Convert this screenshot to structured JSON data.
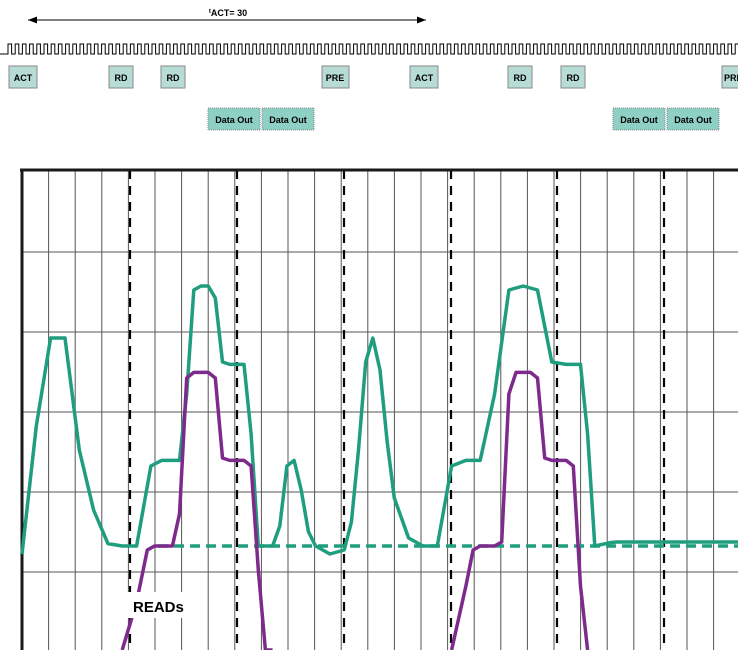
{
  "chart_data": {
    "type": "line",
    "timing": {
      "tact_label": "ACT= 30",
      "tact_prefix": "t",
      "commands": [
        "ACT",
        "RD",
        "RD",
        "PRE",
        "ACT",
        "RD",
        "RD",
        "PRE"
      ],
      "data_out": [
        "Data Out",
        "Data Out",
        "Data Out",
        "Data Out"
      ]
    },
    "annotations": [
      "READs"
    ],
    "xlabel": "",
    "ylabel": "",
    "grid": true,
    "colors": {
      "green": "#1e9e7e",
      "purple": "#7d2a8c",
      "command_fill": "#b7dcd6",
      "data_fill": "#8fd0c4",
      "axis": "#1a1a1a",
      "grid": "#555555"
    },
    "series": [
      {
        "color": "green",
        "x": [
          0,
          4,
          8,
          12,
          16,
          20,
          24,
          28,
          32,
          36,
          39,
          42,
          44,
          46,
          48,
          50,
          52,
          54,
          56,
          58,
          60,
          62,
          64,
          66,
          68,
          70,
          72,
          74,
          76,
          78,
          80,
          82,
          86,
          90,
          92,
          94,
          96,
          98,
          100,
          102,
          104,
          108,
          112,
          116,
          120,
          124,
          128,
          132,
          136,
          140,
          144,
          148,
          152,
          154,
          156,
          158,
          160,
          162,
          164,
          166,
          168,
          170,
          172,
          174,
          176,
          178,
          180,
          182,
          184,
          186,
          188,
          190,
          192,
          194,
          196,
          198,
          200
        ],
        "values": [
          0,
          1.6,
          2.7,
          2.7,
          1.3,
          0.55,
          0.13,
          0.1,
          0.1,
          1.1,
          1.17,
          1.17,
          1.17,
          2.0,
          3.3,
          3.35,
          3.35,
          3.2,
          2.4,
          2.37,
          2.37,
          2.37,
          1.5,
          0.1,
          0.1,
          0.1,
          0.35,
          1.1,
          1.17,
          0.8,
          0.28,
          0.1,
          0,
          0.05,
          0.4,
          1.3,
          2.4,
          2.7,
          2.3,
          1.4,
          0.7,
          0.2,
          0.1,
          0.1,
          1.1,
          1.17,
          1.17,
          2.0,
          3.3,
          3.35,
          3.3,
          2.4,
          2.37,
          2.37,
          2.37,
          1.5,
          0.1,
          0.12,
          0.14,
          0.15,
          0.15,
          0.15,
          0.15,
          0.15,
          0.15,
          0.15,
          0.15,
          0.15,
          0.15,
          0.15,
          0.15,
          0.15,
          0.15,
          0.15,
          0.15,
          0.15,
          0.15
        ]
      },
      {
        "color": "purple",
        "x": [
          28,
          32,
          35,
          37,
          40,
          42,
          44,
          46,
          48,
          50,
          52,
          54,
          56,
          58,
          60,
          62,
          64,
          66,
          68,
          70,
          120,
          124,
          126,
          128,
          132,
          134,
          136,
          138,
          140,
          142,
          144,
          146,
          148,
          150,
          152,
          154,
          156,
          158
        ],
        "values": [
          -1.2,
          -0.6,
          0.05,
          0.1,
          0.1,
          0.1,
          0.5,
          2.2,
          2.27,
          2.27,
          2.27,
          2.2,
          1.2,
          1.17,
          1.17,
          1.17,
          1.1,
          -0.2,
          -1.2,
          -1.2,
          -1.2,
          -0.4,
          0.05,
          0.1,
          0.1,
          0.15,
          2.0,
          2.27,
          2.27,
          2.27,
          2.2,
          1.2,
          1.17,
          1.17,
          1.17,
          1.1,
          -0.4,
          -1.2
        ]
      }
    ],
    "dashed_level": 0.1,
    "xlim": [
      0,
      200
    ],
    "ylim": [
      -1.2,
      4.8
    ]
  }
}
